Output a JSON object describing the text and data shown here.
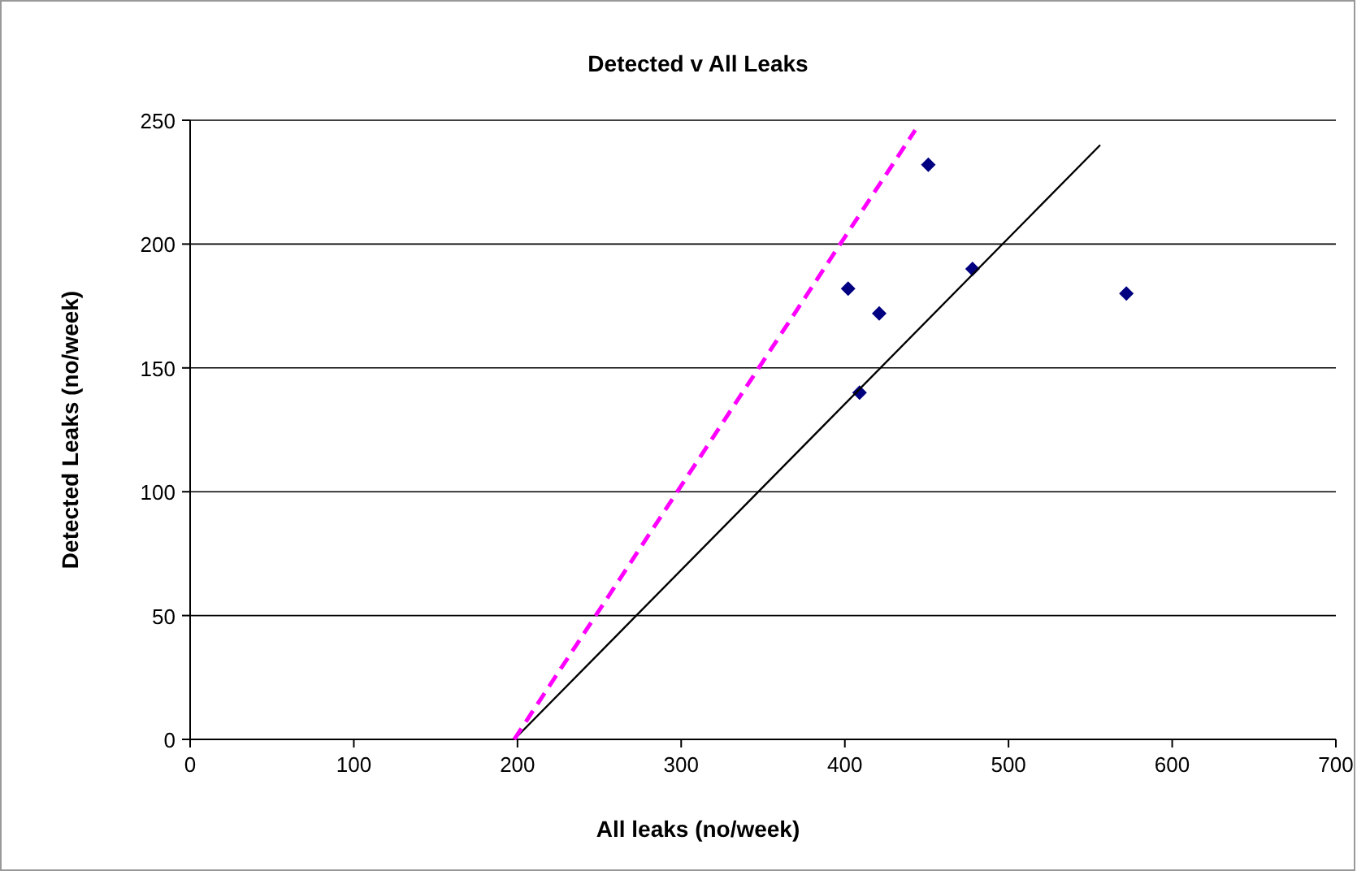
{
  "chart_data": {
    "type": "scatter",
    "title": "Detected v All Leaks",
    "xlabel": "All leaks (no/week)",
    "ylabel": "Detected Leaks (no/week)",
    "xlim": [
      0,
      700
    ],
    "xticks": [
      0,
      100,
      200,
      300,
      400,
      500,
      600,
      700
    ],
    "ylim": [
      0,
      250
    ],
    "yticks": [
      0,
      50,
      100,
      150,
      200,
      250
    ],
    "grid": "y",
    "series": [
      {
        "type": "scatter",
        "color": "#000080",
        "marker": "diamond",
        "x": [
          402,
          451,
          421,
          409,
          478,
          572
        ],
        "values": [
          182,
          232,
          172,
          140,
          190,
          180
        ]
      },
      {
        "type": "line",
        "color": "#000000",
        "marker": "none",
        "line_style": "solid",
        "x": [
          198,
          556
        ],
        "values": [
          0,
          240
        ]
      },
      {
        "type": "line",
        "color": "#ff00ff",
        "marker": "none",
        "line_style": "dashed",
        "x": [
          198,
          443
        ],
        "values": [
          0,
          246
        ]
      }
    ]
  }
}
